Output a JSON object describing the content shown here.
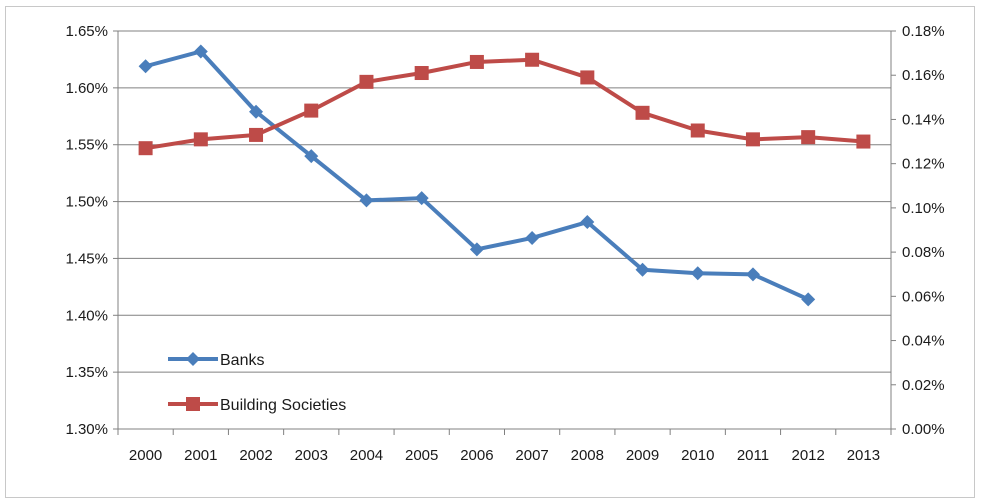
{
  "chart_data": {
    "type": "line",
    "x": [
      "2000",
      "2001",
      "2002",
      "2003",
      "2004",
      "2005",
      "2006",
      "2007",
      "2008",
      "2009",
      "2010",
      "2011",
      "2012",
      "2013"
    ],
    "series": [
      {
        "name": "Banks",
        "axis": "left",
        "color": "#4a7ebb",
        "marker": "diamond",
        "values": [
          1.619,
          1.632,
          1.579,
          1.54,
          1.501,
          1.503,
          1.458,
          1.468,
          1.482,
          1.44,
          1.437,
          1.436,
          1.414,
          null
        ]
      },
      {
        "name": "Building Societies",
        "axis": "right",
        "color": "#be4b48",
        "marker": "square",
        "values": [
          0.127,
          0.131,
          0.133,
          0.144,
          0.157,
          0.161,
          0.166,
          0.167,
          0.159,
          0.143,
          0.135,
          0.131,
          0.132,
          0.13
        ]
      }
    ],
    "y_left": {
      "min": 1.3,
      "max": 1.65,
      "step": 0.05,
      "ticks": [
        "1.30%",
        "1.35%",
        "1.40%",
        "1.45%",
        "1.50%",
        "1.55%",
        "1.60%",
        "1.65%"
      ]
    },
    "y_right": {
      "min": 0.0,
      "max": 0.18,
      "step": 0.02,
      "ticks": [
        "0.00%",
        "0.02%",
        "0.04%",
        "0.06%",
        "0.08%",
        "0.10%",
        "0.12%",
        "0.14%",
        "0.16%",
        "0.18%"
      ]
    },
    "grid": true,
    "legend": {
      "position": "bottom-left-inside",
      "entries": [
        "Banks",
        "Building Societies"
      ]
    },
    "colors": {
      "gridline": "#808080",
      "axis": "#808080"
    }
  }
}
